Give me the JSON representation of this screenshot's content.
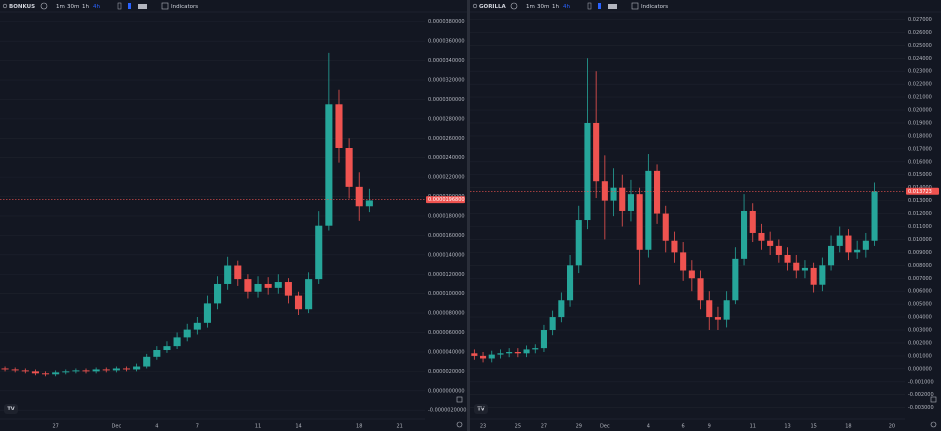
{
  "chart_data": [
    {
      "type": "candlestick",
      "symbol": "BONKUS",
      "intervals": [
        "1m",
        "30m",
        "1h",
        "4h"
      ],
      "active_interval": 3,
      "indicators": "Indicators",
      "up_color": "#26a69a",
      "down_color": "#ef5350",
      "grid": true,
      "categories": [
        null,
        null,
        null,
        null,
        null,
        "27",
        null,
        null,
        null,
        null,
        null,
        "Dec",
        null,
        null,
        null,
        "4",
        null,
        null,
        null,
        "7",
        null,
        null,
        null,
        null,
        null,
        "11",
        null,
        null,
        null,
        "14",
        null,
        null,
        null,
        null,
        null,
        "18",
        null,
        null,
        null,
        "21",
        null,
        null
      ],
      "open": [
        2.3e-06,
        2.2e-06,
        2.1e-06,
        2e-06,
        1.8e-06,
        1.7e-06,
        1.9e-06,
        2e-06,
        2.1e-06,
        2e-06,
        2.2e-06,
        2.1e-06,
        2.3e-06,
        2.2e-06,
        2.5e-06,
        3.5e-06,
        4.2e-06,
        4.6e-06,
        5.5e-06,
        6.3e-06,
        7e-06,
        9e-06,
        1.1e-05,
        1.29e-05,
        1.15e-05,
        1.02e-05,
        1.1e-05,
        1.06e-05,
        1.12e-05,
        9.8e-06,
        8.4e-06,
        1.15e-05,
        1.7e-05,
        2.95e-05,
        2.5e-05,
        2.1e-05,
        1.9e-05,
        null,
        null,
        null,
        null,
        null
      ],
      "high": [
        2.5e-06,
        2.4e-06,
        2.3e-06,
        2.2e-06,
        2e-06,
        2.1e-06,
        2.2e-06,
        2.3e-06,
        2.3e-06,
        2.4e-06,
        2.4e-06,
        2.5e-06,
        2.5e-06,
        2.8e-06,
        3.8e-06,
        4.6e-06,
        5.1e-06,
        6e-06,
        6.9e-06,
        7.6e-06,
        9.8e-06,
        1.18e-05,
        1.38e-05,
        1.34e-05,
        1.2e-05,
        1.18e-05,
        1.17e-05,
        1.2e-05,
        1.16e-05,
        1.02e-05,
        1.22e-05,
        1.85e-05,
        3.48e-05,
        3.1e-05,
        2.6e-05,
        2.25e-05,
        2.08e-05,
        null,
        null,
        null,
        null,
        null
      ],
      "low": [
        2e-06,
        1.9e-06,
        1.8e-06,
        1.6e-06,
        1.5e-06,
        1.5e-06,
        1.7e-06,
        1.8e-06,
        1.8e-06,
        1.8e-06,
        1.9e-06,
        1.9e-06,
        2e-06,
        2e-06,
        2.3e-06,
        3.2e-06,
        3.9e-06,
        4.3e-06,
        5.1e-06,
        5.8e-06,
        6.5e-06,
        8.4e-06,
        1.04e-05,
        1.08e-05,
        9.5e-06,
        9.6e-06,
        9.9e-06,
        1e-05,
        9e-06,
        7.8e-06,
        8e-06,
        1.1e-05,
        1.65e-05,
        2.35e-05,
        1.98e-05,
        1.75e-05,
        1.84e-05,
        null,
        null,
        null,
        null,
        null
      ],
      "close": [
        2.2e-06,
        2.1e-06,
        2e-06,
        1.8e-06,
        1.7e-06,
        1.9e-06,
        2e-06,
        2.1e-06,
        2e-06,
        2.2e-06,
        2.1e-06,
        2.3e-06,
        2.2e-06,
        2.5e-06,
        3.5e-06,
        4.2e-06,
        4.6e-06,
        5.5e-06,
        6.3e-06,
        7e-06,
        9e-06,
        1.1e-05,
        1.29e-05,
        1.15e-05,
        1.02e-05,
        1.1e-05,
        1.06e-05,
        1.12e-05,
        9.8e-06,
        8.4e-06,
        1.15e-05,
        1.7e-05,
        2.95e-05,
        2.5e-05,
        2.1e-05,
        1.9e-05,
        1.96e-05,
        null,
        null,
        null,
        null,
        null
      ],
      "last_price": {
        "value": 1.968e-05,
        "label": "0.0000196800"
      },
      "ylim": [
        -2.8e-06,
        3.89e-05
      ],
      "yticks": [
        {
          "value": -2e-06,
          "label": "-0.0000020000"
        },
        {
          "value": 0,
          "label": "0.0000000000"
        },
        {
          "value": 2e-06,
          "label": "0.0000020000"
        },
        {
          "value": 4e-06,
          "label": "0.0000040000"
        },
        {
          "value": 6e-06,
          "label": "0.0000060000"
        },
        {
          "value": 8e-06,
          "label": "0.0000080000"
        },
        {
          "value": 1e-05,
          "label": "0.0000100000"
        },
        {
          "value": 1.2e-05,
          "label": "0.0000120000"
        },
        {
          "value": 1.4e-05,
          "label": "0.0000140000"
        },
        {
          "value": 1.6e-05,
          "label": "0.0000160000"
        },
        {
          "value": 1.8e-05,
          "label": "0.0000180000"
        },
        {
          "value": 2e-05,
          "label": "0.0000200000"
        },
        {
          "value": 2.2e-05,
          "label": "0.0000220000"
        },
        {
          "value": 2.4e-05,
          "label": "0.0000240000"
        },
        {
          "value": 2.6e-05,
          "label": "0.0000260000"
        },
        {
          "value": 2.8e-05,
          "label": "0.0000280000"
        },
        {
          "value": 3e-05,
          "label": "0.0000300000"
        },
        {
          "value": 3.2e-05,
          "label": "0.0000320000"
        },
        {
          "value": 3.4e-05,
          "label": "0.0000340000"
        },
        {
          "value": 3.6e-05,
          "label": "0.0000360000"
        },
        {
          "value": 3.8e-05,
          "label": "0.0000380000"
        }
      ]
    },
    {
      "type": "candlestick",
      "symbol": "GORILLA",
      "intervals": [
        "1m",
        "30m",
        "1h",
        "4h"
      ],
      "active_interval": 3,
      "indicators": "Indicators",
      "up_color": "#26a69a",
      "down_color": "#ef5350",
      "grid": true,
      "categories": [
        null,
        "23",
        null,
        null,
        null,
        "25",
        null,
        null,
        "27",
        null,
        null,
        null,
        "29",
        null,
        null,
        "Dec",
        null,
        null,
        null,
        null,
        "4",
        null,
        null,
        null,
        "6",
        null,
        null,
        "9",
        null,
        null,
        null,
        null,
        "11",
        null,
        null,
        null,
        "13",
        null,
        null,
        "15",
        null,
        null,
        null,
        "18",
        null,
        null,
        null,
        null,
        "20",
        null
      ],
      "open": [
        0.0012,
        0.001,
        0.0008,
        0.0011,
        0.0012,
        0.0013,
        0.0012,
        0.0015,
        0.0016,
        0.003,
        0.004,
        0.0053,
        0.008,
        0.0115,
        0.019,
        0.0145,
        0.013,
        0.014,
        0.0122,
        0.0135,
        0.0092,
        0.0153,
        0.012,
        0.0099,
        0.009,
        0.0076,
        0.007,
        0.0053,
        0.004,
        0.0038,
        0.0053,
        0.0085,
        0.0122,
        0.0105,
        0.0099,
        0.0095,
        0.0088,
        0.0082,
        0.0076,
        0.0078,
        0.0065,
        0.008,
        0.0095,
        0.0103,
        0.009,
        0.0092,
        0.0099,
        null,
        null,
        null
      ],
      "high": [
        0.0015,
        0.0013,
        0.0014,
        0.0015,
        0.0016,
        0.0016,
        0.0018,
        0.0019,
        0.0034,
        0.0045,
        0.0059,
        0.0088,
        0.0126,
        0.024,
        0.023,
        0.0165,
        0.0155,
        0.015,
        0.0146,
        0.014,
        0.0166,
        0.0158,
        0.0126,
        0.0106,
        0.0098,
        0.0084,
        0.0076,
        0.006,
        0.0048,
        0.006,
        0.0094,
        0.0135,
        0.0128,
        0.0112,
        0.0106,
        0.01,
        0.0094,
        0.0088,
        0.0084,
        0.0082,
        0.0086,
        0.0103,
        0.011,
        0.0108,
        0.0099,
        0.0105,
        0.0144,
        null,
        null,
        null
      ],
      "low": [
        0.0007,
        0.0005,
        0.0005,
        0.0008,
        0.0009,
        0.0009,
        0.0009,
        0.0012,
        0.0013,
        0.0026,
        0.0036,
        0.0048,
        0.0074,
        0.0108,
        0.0132,
        0.01,
        0.0118,
        0.011,
        0.0114,
        0.0065,
        0.0086,
        0.0112,
        0.009,
        0.0082,
        0.0068,
        0.006,
        0.0046,
        0.003,
        0.003,
        0.0032,
        0.005,
        0.008,
        0.0098,
        0.0092,
        0.0088,
        0.0082,
        0.0076,
        0.007,
        0.007,
        0.0059,
        0.006,
        0.0076,
        0.009,
        0.0084,
        0.0085,
        0.0086,
        0.0095,
        null,
        null,
        null
      ],
      "close": [
        0.001,
        0.0008,
        0.0011,
        0.0012,
        0.0013,
        0.0012,
        0.0015,
        0.0016,
        0.003,
        0.004,
        0.0053,
        0.008,
        0.0115,
        0.019,
        0.0145,
        0.013,
        0.014,
        0.0122,
        0.0135,
        0.0092,
        0.0153,
        0.012,
        0.0099,
        0.009,
        0.0076,
        0.007,
        0.0053,
        0.004,
        0.0038,
        0.0053,
        0.0085,
        0.0122,
        0.0105,
        0.0099,
        0.0095,
        0.0088,
        0.0082,
        0.0076,
        0.0078,
        0.0065,
        0.008,
        0.0095,
        0.0103,
        0.009,
        0.0092,
        0.0099,
        0.0137,
        null,
        null,
        null
      ],
      "last_price": {
        "value": 0.013723,
        "label": "0.013723"
      },
      "ylim": [
        -0.0038,
        0.0275
      ],
      "yticks": [
        {
          "value": -0.003,
          "label": "-0.003000"
        },
        {
          "value": -0.002,
          "label": "-0.002000"
        },
        {
          "value": -0.001,
          "label": "-0.001000"
        },
        {
          "value": 0,
          "label": "0.000000"
        },
        {
          "value": 0.001,
          "label": "0.001000"
        },
        {
          "value": 0.002,
          "label": "0.002000"
        },
        {
          "value": 0.003,
          "label": "0.003000"
        },
        {
          "value": 0.004,
          "label": "0.004000"
        },
        {
          "value": 0.005,
          "label": "0.005000"
        },
        {
          "value": 0.006,
          "label": "0.006000"
        },
        {
          "value": 0.007,
          "label": "0.007000"
        },
        {
          "value": 0.008,
          "label": "0.008000"
        },
        {
          "value": 0.009,
          "label": "0.009000"
        },
        {
          "value": 0.01,
          "label": "0.010000"
        },
        {
          "value": 0.011,
          "label": "0.011000"
        },
        {
          "value": 0.012,
          "label": "0.012000"
        },
        {
          "value": 0.013,
          "label": "0.013000"
        },
        {
          "value": 0.014,
          "label": "0.014000"
        },
        {
          "value": 0.015,
          "label": "0.015000"
        },
        {
          "value": 0.016,
          "label": "0.016000"
        },
        {
          "value": 0.017,
          "label": "0.017000"
        },
        {
          "value": 0.018,
          "label": "0.018000"
        },
        {
          "value": 0.019,
          "label": "0.019000"
        },
        {
          "value": 0.02,
          "label": "0.020000"
        },
        {
          "value": 0.021,
          "label": "0.021000"
        },
        {
          "value": 0.022,
          "label": "0.022000"
        },
        {
          "value": 0.023,
          "label": "0.023000"
        },
        {
          "value": 0.024,
          "label": "0.024000"
        },
        {
          "value": 0.025,
          "label": "0.025000"
        },
        {
          "value": 0.026,
          "label": "0.026000"
        },
        {
          "value": 0.027,
          "label": "0.027000"
        }
      ]
    }
  ]
}
